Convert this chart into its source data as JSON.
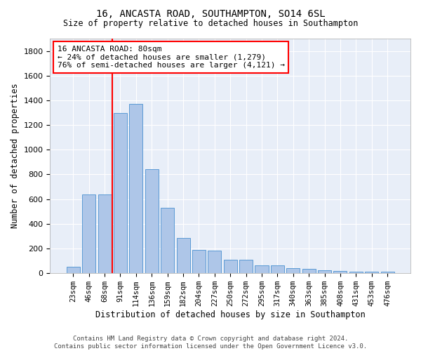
{
  "title_line1": "16, ANCASTA ROAD, SOUTHAMPTON, SO14 6SL",
  "title_line2": "Size of property relative to detached houses in Southampton",
  "xlabel": "Distribution of detached houses by size in Southampton",
  "ylabel": "Number of detached properties",
  "footnote": "Contains HM Land Registry data © Crown copyright and database right 2024.\nContains public sector information licensed under the Open Government Licence v3.0.",
  "categories": [
    "23sqm",
    "46sqm",
    "68sqm",
    "91sqm",
    "114sqm",
    "136sqm",
    "159sqm",
    "182sqm",
    "204sqm",
    "227sqm",
    "250sqm",
    "272sqm",
    "295sqm",
    "317sqm",
    "340sqm",
    "363sqm",
    "385sqm",
    "408sqm",
    "431sqm",
    "453sqm",
    "476sqm"
  ],
  "values": [
    50,
    640,
    640,
    1300,
    1370,
    845,
    530,
    283,
    190,
    185,
    110,
    110,
    65,
    65,
    40,
    35,
    25,
    20,
    15,
    15,
    15
  ],
  "bar_color": "#aec6e8",
  "bar_edge_color": "#5b9bd5",
  "background_color": "#e8eef8",
  "grid_color": "#ffffff",
  "red_line_x": 2.5,
  "annotation_text": "16 ANCASTA ROAD: 80sqm\n← 24% of detached houses are smaller (1,279)\n76% of semi-detached houses are larger (4,121) →",
  "ylim": [
    0,
    1900
  ],
  "yticks": [
    0,
    200,
    400,
    600,
    800,
    1000,
    1200,
    1400,
    1600,
    1800
  ]
}
